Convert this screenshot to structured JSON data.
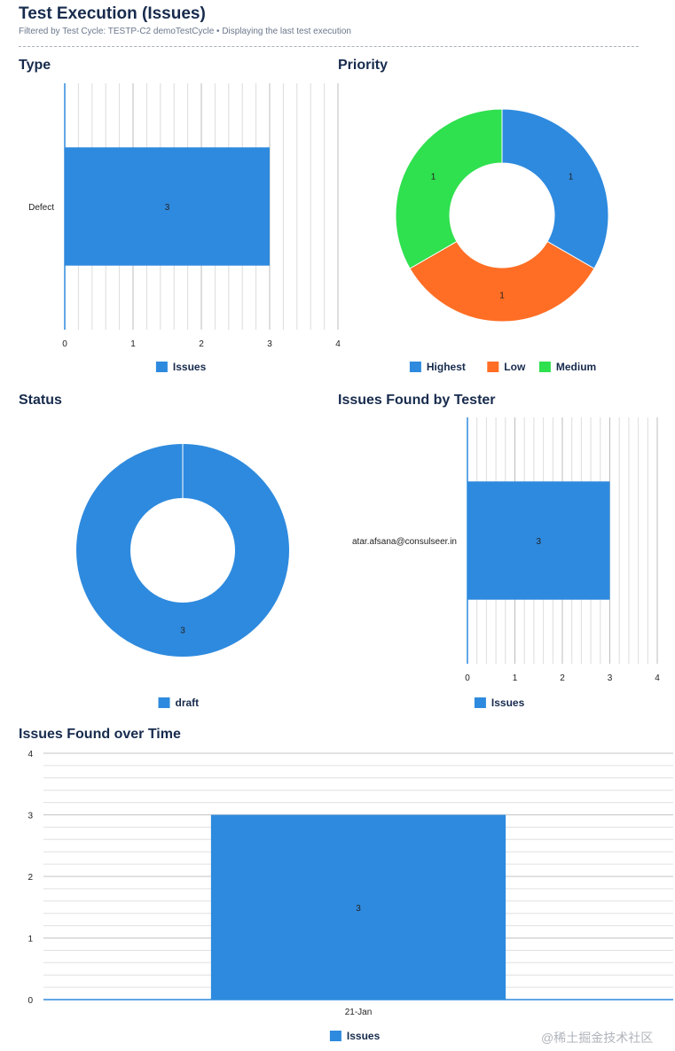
{
  "header": {
    "title": "Test Execution (Issues)",
    "subtitle": "Filtered by Test Cycle: TESTP-C2 demoTestCycle  •  Displaying the last test execution"
  },
  "panels": {
    "type_title": "Type",
    "priority_title": "Priority",
    "status_title": "Status",
    "tester_title": "Issues Found by Tester",
    "time_title": "Issues Found over Time"
  },
  "watermark": "@稀土掘金技术社区",
  "colors": {
    "blue": "#2e8ade",
    "orange": "#ff6e24",
    "green": "#2fe04f"
  },
  "chart_data": [
    {
      "id": "type",
      "type": "bar",
      "orientation": "horizontal",
      "categories": [
        "Defect"
      ],
      "series": [
        {
          "name": "Issues",
          "values": [
            3
          ],
          "color": "#2e8ade"
        }
      ],
      "xlim": [
        0,
        4
      ],
      "ticks": [
        "0",
        "1",
        "2",
        "3",
        "4"
      ],
      "legend": "bottom",
      "grid": true
    },
    {
      "id": "priority",
      "type": "pie",
      "donut": true,
      "slices": [
        {
          "label": "Highest",
          "value": 1,
          "color": "#2e8ade"
        },
        {
          "label": "Low",
          "value": 1,
          "color": "#ff6e24"
        },
        {
          "label": "Medium",
          "value": 1,
          "color": "#2fe04f"
        }
      ],
      "legend": "bottom"
    },
    {
      "id": "status",
      "type": "pie",
      "donut": true,
      "slices": [
        {
          "label": "draft",
          "value": 3,
          "color": "#2e8ade"
        }
      ],
      "legend": "bottom"
    },
    {
      "id": "tester",
      "type": "bar",
      "orientation": "horizontal",
      "categories": [
        "atar.afsana@consulseer.in"
      ],
      "series": [
        {
          "name": "Issues",
          "values": [
            3
          ],
          "color": "#2e8ade"
        }
      ],
      "xlim": [
        0,
        4
      ],
      "ticks": [
        "0",
        "1",
        "2",
        "3",
        "4"
      ],
      "legend": "bottom",
      "grid": true
    },
    {
      "id": "time",
      "type": "bar",
      "orientation": "vertical",
      "categories": [
        "21-Jan"
      ],
      "series": [
        {
          "name": "Issues",
          "values": [
            3
          ],
          "color": "#2e8ade"
        }
      ],
      "ylim": [
        0,
        4
      ],
      "ticks": [
        "0",
        "1",
        "2",
        "3",
        "4"
      ],
      "legend": "bottom",
      "grid": true
    }
  ]
}
